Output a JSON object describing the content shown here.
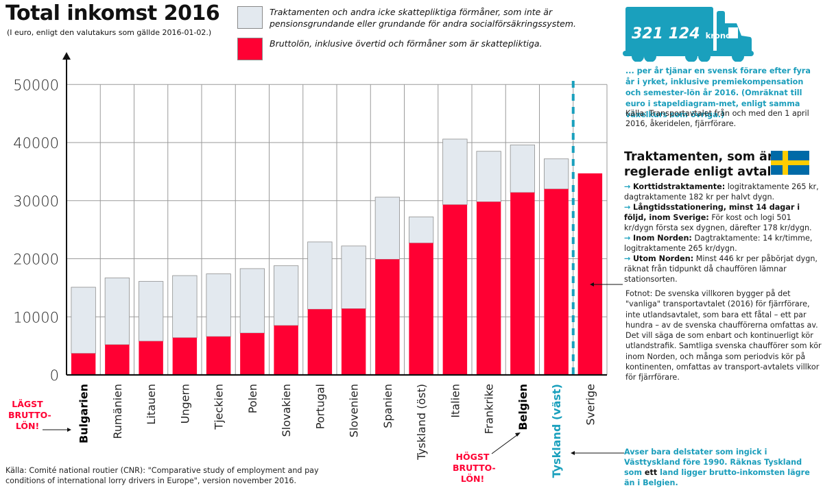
{
  "header": {
    "title": "Total inkomst 2016",
    "subtitle": "(I euro, enligt den valutakurs som gällde 2016-01-02.)"
  },
  "legend": [
    {
      "key": "allowances",
      "text_line1": "Traktamenten och andra icke skattepliktiga förmåner, som inte är",
      "text_line2": "pensionsgrundande eller grundande för andra socialförsäkringssystem.",
      "color": "#e3e9ef"
    },
    {
      "key": "gross",
      "text_line1": "Bruttolön, inklusive övertid och förmåner som är skattepliktiga.",
      "text_line2": "",
      "color": "#ff0033"
    }
  ],
  "colors": {
    "gross": "#ff0033",
    "allowances": "#e3e9ef",
    "teal": "#1aa0bd",
    "grid": "#9a9a9a"
  },
  "chart_data": {
    "type": "bar",
    "stacked": true,
    "title": "Total inkomst 2016",
    "subtitle": "(I euro, enligt den valutakurs som gällde 2016-01-02.)",
    "xlabel": "",
    "ylabel": "",
    "ylim": [
      0,
      50000
    ],
    "yticks": [
      0,
      10000,
      20000,
      30000,
      40000,
      50000
    ],
    "ytick_labels": [
      "0",
      "10000",
      "20000",
      "30000",
      "40000",
      "50000"
    ],
    "grid": true,
    "legend_position": "top",
    "categories": [
      "Bulgarien",
      "Rumänien",
      "Litauen",
      "Ungern",
      "Tjeckien",
      "Polen",
      "Slovakien",
      "Portugal",
      "Slovenien",
      "Spanien",
      "Tyskland (öst)",
      "Italien",
      "Frankrike",
      "Belgien",
      "Tyskland (väst)",
      "Sverige"
    ],
    "category_styles": [
      "bold",
      "normal",
      "normal",
      "normal",
      "normal",
      "normal",
      "normal",
      "normal",
      "normal",
      "normal",
      "normal",
      "normal",
      "normal",
      "bold",
      "teal",
      "normal"
    ],
    "series": [
      {
        "name": "Bruttolön, inklusive övertid och förmåner som är skattepliktiga.",
        "key": "gross",
        "values": [
          3700,
          5200,
          5800,
          6400,
          6600,
          7200,
          8500,
          11300,
          11400,
          19900,
          22700,
          29300,
          29800,
          31400,
          32000,
          34700
        ]
      },
      {
        "name": "Traktamenten och andra icke skattepliktiga förmåner",
        "key": "allowances",
        "values": [
          11400,
          11500,
          10300,
          10700,
          10800,
          11100,
          10300,
          11600,
          10800,
          10700,
          4500,
          11300,
          8700,
          8200,
          5200,
          0
        ]
      }
    ],
    "totals": [
      15100,
      16700,
      16100,
      17100,
      17400,
      18300,
      18800,
      22900,
      22200,
      30600,
      27200,
      40600,
      38500,
      39600,
      37200,
      34700
    ],
    "divider_after_category": "Tyskland (väst)"
  },
  "callouts": {
    "lowest": {
      "line1": "LÄGST",
      "line2": "BRUTTO-",
      "line3": "LÖN!"
    },
    "highest": {
      "line1": "HÖGST",
      "line2": "BRUTTO-",
      "line3": "LÖN!"
    }
  },
  "truck": {
    "amount": "321 124",
    "unit": "kronor",
    "icon": "truck-icon"
  },
  "truck_caption": "... per år tjänar en svensk förare efter fyra år i yrket, inklusive premiekompensation och semester-lön år 2016. (Omräknat till euro i stapeldiagram-met, enligt samma växelkurs som övriga.)",
  "truck_source": "Källa: Transportavtalet från och med den 1 april 2016, åkeridelen, fjärrförare.",
  "traktamenten": {
    "heading_line1": "Traktamenten, som är",
    "heading_line2": "reglerade enligt avtal",
    "flag": "sweden-flag-icon",
    "items": [
      {
        "bold": "Korttidstraktamente:",
        "text": " logitraktamente 265 kr, dagtraktamente 182 kr per halvt dygn."
      },
      {
        "bold": "Långtidsstationering, minst 14 dagar i följd, inom Sverige:",
        "text": " För kost och logi 501 kr/dygn första sex dygnen, därefter 178 kr/dygn."
      },
      {
        "bold": "Inom Norden:",
        "text": " Dagtraktamente: 14 kr/timme, logitraktamente 265 kr/dygn."
      },
      {
        "bold": "Utom Norden:",
        "text": " Minst 446 kr per påbörjat dygn, räknat från tidpunkt då chauffören lämnar stationsorten."
      }
    ]
  },
  "footnote": "Fotnot: De svenska villkoren bygger på det \"vanliga\" transportavtalet (2016) för fjärrförare, inte utlandsavtalet, som bara ett fåtal – ett par hundra – av de svenska chaufförerna omfattas av. Det vill säga de som enbart och kontinuerligt kör utlandstrafik. Samtliga svenska chaufförer som kör inom Norden, och många som periodvis kör på kontinenten, omfattas av transport-avtalets villkor för fjärrförare.",
  "vast_note": {
    "part1": "Avser bara delstater som ingick i Västtyskland före 1990. Räknas Tyskland som ",
    "emphasis": "ett",
    "part2": " land ligger brutto-inkomsten lägre än i Belgien."
  },
  "source": "Källa: Comité national routier (CNR): \"Comparative study of employment and pay conditions of international lorry drivers in Europe\", version november 2016."
}
